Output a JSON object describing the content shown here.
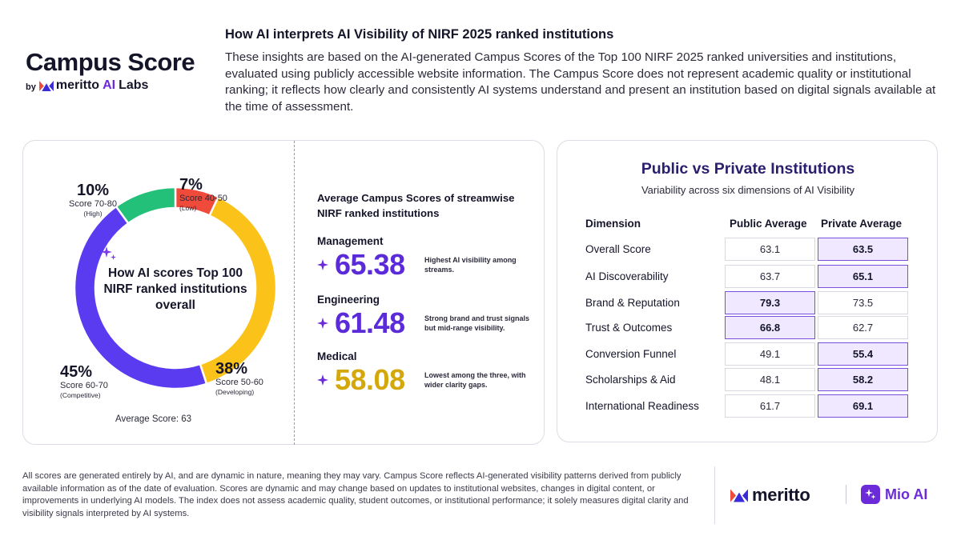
{
  "brand": {
    "title": "Campus Score",
    "by": "by",
    "company": "meritto",
    "ai": "AI",
    "labs": "Labs"
  },
  "headline": "How AI interprets AI Visibility of NIRF 2025 ranked institutions",
  "intro": "These insights are based on the AI-generated Campus Scores of the Top 100 NIRF 2025 ranked universities and institutions, evaluated using publicly accessible website information. The Campus Score does not represent academic quality or institutional ranking; it reflects how clearly and consistently AI systems understand and present an institution based on digital signals available at the time of assessment.",
  "donut": {
    "center_text": "How AI scores Top 100 NIRF ranked institutions overall",
    "average_label": "Average Score: 63"
  },
  "streams": {
    "title": "Average Campus Scores of streamwise NIRF ranked institutions",
    "items": [
      {
        "name": "Management",
        "value": "65.38",
        "note": "Highest AI visibility among streams.",
        "color": "#5b2bd9"
      },
      {
        "name": "Engineering",
        "value": "61.48",
        "note": "Strong brand and trust signals but mid-range visibility.",
        "color": "#5b2bd9"
      },
      {
        "name": "Medical",
        "value": "58.08",
        "note": "Lowest among the three, with wider clarity gaps.",
        "color": "#d4a80a"
      }
    ]
  },
  "table": {
    "title": "Public vs Private Institutions",
    "subtitle": "Variability across six dimensions of AI Visibility",
    "headers": {
      "dimension": "Dimension",
      "public": "Public Average",
      "private": "Private Average"
    },
    "rows": [
      {
        "dimension": "Overall Score",
        "public": "63.1",
        "private": "63.5",
        "highlight": "private"
      },
      {
        "dimension": "AI Discoverability",
        "public": "63.7",
        "private": "65.1",
        "highlight": "private"
      },
      {
        "dimension": "Brand & Reputation",
        "public": "79.3",
        "private": "73.5",
        "highlight": "public"
      },
      {
        "dimension": "Trust & Outcomes",
        "public": "66.8",
        "private": "62.7",
        "highlight": "public"
      },
      {
        "dimension": "Conversion Funnel",
        "public": "49.1",
        "private": "55.4",
        "highlight": "private"
      },
      {
        "dimension": "Scholarships & Aid",
        "public": "48.1",
        "private": "58.2",
        "highlight": "private"
      },
      {
        "dimension": "International Readiness",
        "public": "61.7",
        "private": "69.1",
        "highlight": "private"
      }
    ],
    "highlight_color": "#7a4fe0"
  },
  "footer": {
    "note": "All scores are generated entirely by AI, and are dynamic in nature, meaning they may vary. Campus Score reflects AI-generated visibility patterns derived from publicly available information as of the date of evaluation. Scores are dynamic and may change based on updates to institutional websites, changes in digital content, or improvements in underlying AI models. The index does not assess academic quality, student outcomes, or institutional performance; it solely measures digital clarity and visibility signals interpreted by AI systems.",
    "logo_meritto": "meritto",
    "logo_mio": "Mio AI"
  },
  "chart_data": [
    {
      "type": "pie",
      "title": "How AI scores Top 100 NIRF ranked institutions overall",
      "donut": true,
      "slices": [
        {
          "label": "Score 40-50",
          "tier": "(Low)",
          "value": 7,
          "pct_label": "7%",
          "color": "#f04a3a"
        },
        {
          "label": "Score 50-60",
          "tier": "(Developing)",
          "value": 38,
          "pct_label": "38%",
          "color": "#fbc21a"
        },
        {
          "label": "Score 60-70",
          "tier": "(Competitive)",
          "value": 45,
          "pct_label": "45%",
          "color": "#5b3bf0"
        },
        {
          "label": "Score 70-80",
          "tier": "(High)",
          "value": 10,
          "pct_label": "10%",
          "color": "#22c078"
        }
      ],
      "start_at": "top",
      "direction": "clockwise"
    },
    {
      "type": "table",
      "title": "Public vs Private Institutions",
      "columns": [
        "Dimension",
        "Public Average",
        "Private Average"
      ],
      "rows": [
        [
          "Overall Score",
          63.1,
          63.5
        ],
        [
          "AI Discoverability",
          63.7,
          65.1
        ],
        [
          "Brand & Reputation",
          79.3,
          73.5
        ],
        [
          "Trust & Outcomes",
          66.8,
          62.7
        ],
        [
          "Conversion Funnel",
          49.1,
          55.4
        ],
        [
          "Scholarships & Aid",
          48.1,
          58.2
        ],
        [
          "International Readiness",
          61.7,
          69.1
        ]
      ]
    }
  ]
}
